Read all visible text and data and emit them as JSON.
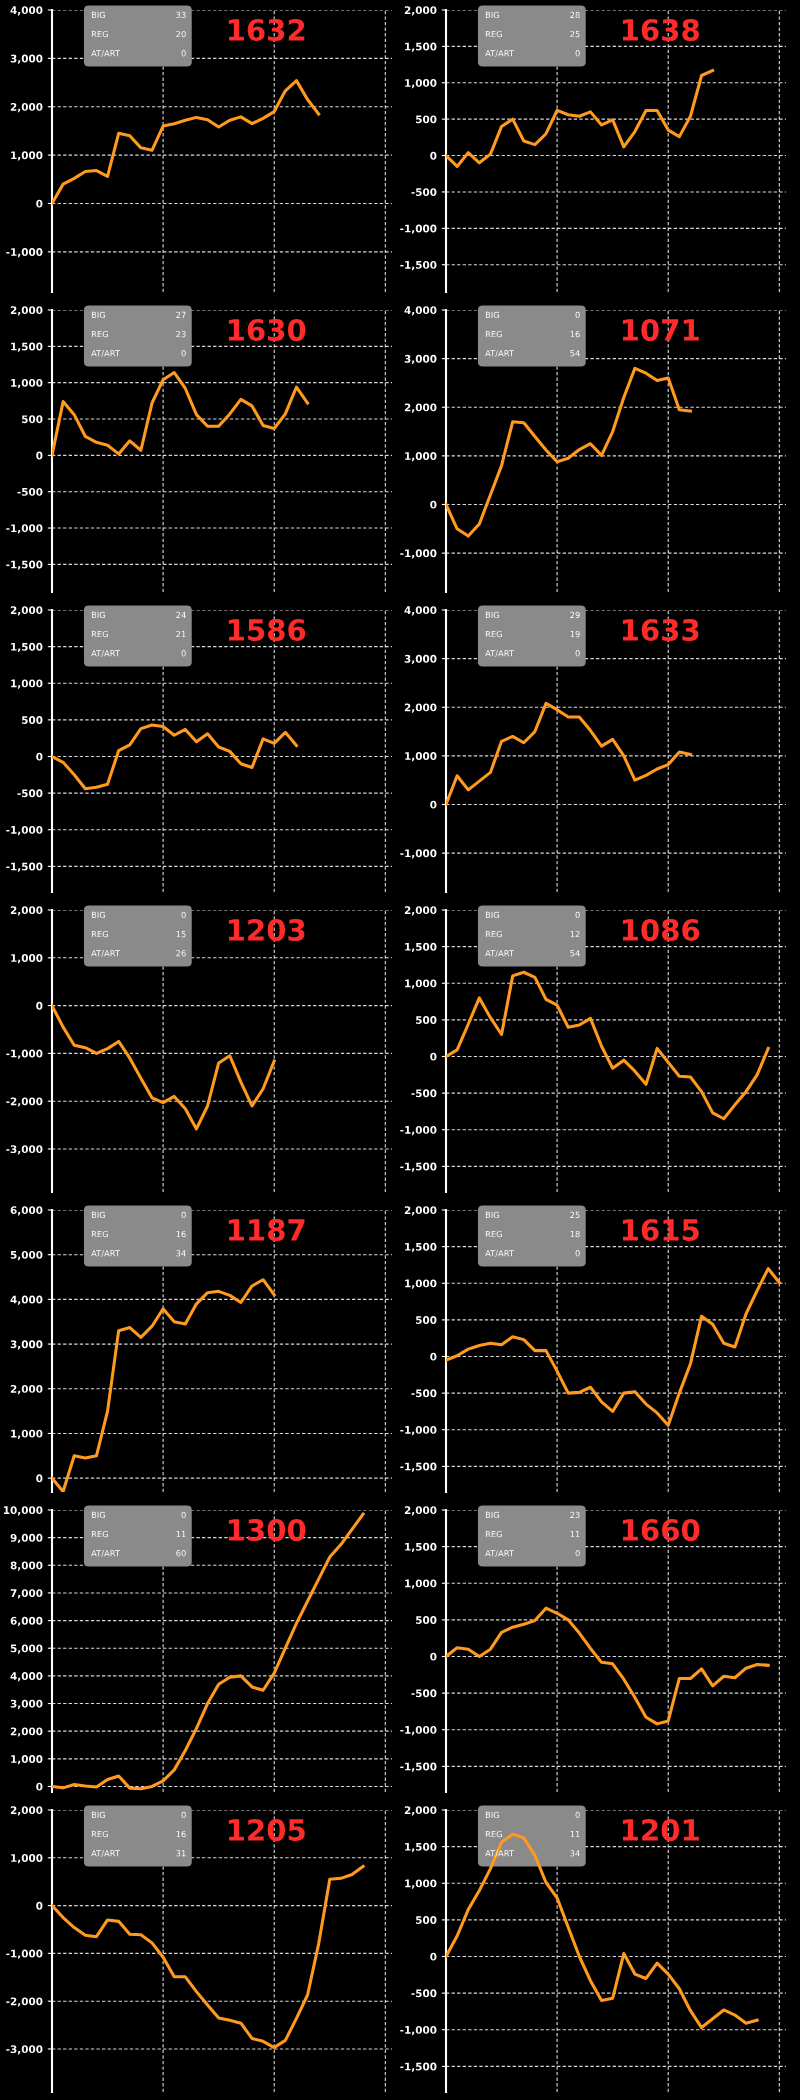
{
  "chart_data": [
    {
      "type": "line",
      "title": "1632",
      "annotations": [
        "BIG",
        "33",
        "REG",
        "20",
        "AT/ART",
        "0"
      ],
      "categories": [
        null,
        null,
        null,
        null,
        null,
        null,
        null,
        null,
        null,
        null,
        null,
        null,
        null,
        null,
        null,
        null,
        null,
        null,
        null,
        null,
        null,
        null,
        null,
        null,
        null,
        null,
        null,
        null,
        null,
        null,
        null
      ],
      "series": [
        {
          "color": "#ff9a1f",
          "values": [
            0,
            400,
            520,
            660,
            680,
            560,
            1450,
            1400,
            1150,
            1100,
            1600,
            1650,
            1720,
            1780,
            1730,
            1580,
            1720,
            1790,
            1650,
            1760,
            1900,
            2330,
            2540,
            2150,
            1850,
            null,
            null,
            null,
            null,
            null,
            null
          ]
        }
      ],
      "ylim": [
        -1830,
        4000
      ],
      "yticks": [
        {
          "value": -1000,
          "label": "-1,000"
        },
        0,
        {
          "value": 1000,
          "label": "1,000"
        },
        {
          "value": 2000,
          "label": "2,000"
        },
        {
          "value": 3000,
          "label": "3,000"
        },
        {
          "value": 4000,
          "label": "4,000"
        }
      ],
      "grid": true,
      "tick_labels": "y"
    },
    {
      "type": "line",
      "title": "1638",
      "annotations": [
        "BIG",
        "28",
        "REG",
        "25",
        "AT/ART",
        "0"
      ],
      "categories": [
        null,
        null,
        null,
        null,
        null,
        null,
        null,
        null,
        null,
        null,
        null,
        null,
        null,
        null,
        null,
        null,
        null,
        null,
        null,
        null,
        null,
        null,
        null,
        null,
        null,
        null,
        null,
        null,
        null,
        null,
        null
      ],
      "series": [
        {
          "color": "#ff9a1f",
          "values": [
            0,
            -150,
            40,
            -100,
            20,
            400,
            500,
            200,
            150,
            300,
            620,
            560,
            540,
            600,
            420,
            490,
            120,
            330,
            620,
            620,
            350,
            260,
            540,
            1100,
            1170,
            null,
            null,
            null,
            null,
            null,
            null
          ]
        }
      ],
      "ylim": [
        -1875,
        2000
      ],
      "yticks": [
        {
          "value": -1500,
          "label": "-1,500"
        },
        {
          "value": -1000,
          "label": "-1,000"
        },
        -500,
        0,
        500,
        {
          "value": 1000,
          "label": "1,000"
        },
        {
          "value": 1500,
          "label": "1,500"
        },
        {
          "value": 2000,
          "label": "2,000"
        }
      ],
      "grid": true,
      "tick_labels": "y"
    },
    {
      "type": "line",
      "title": "1630",
      "annotations": [
        "BIG",
        "27",
        "REG",
        "23",
        "AT/ART",
        "0"
      ],
      "categories": [
        null,
        null,
        null,
        null,
        null,
        null,
        null,
        null,
        null,
        null,
        null,
        null,
        null,
        null,
        null,
        null,
        null,
        null,
        null,
        null,
        null,
        null,
        null,
        null,
        null,
        null,
        null,
        null,
        null,
        null,
        null
      ],
      "series": [
        {
          "color": "#ff9a1f",
          "values": [
            0,
            740,
            560,
            260,
            180,
            140,
            20,
            200,
            70,
            720,
            1040,
            1140,
            920,
            560,
            400,
            400,
            570,
            770,
            680,
            410,
            370,
            570,
            940,
            720,
            null,
            null,
            null,
            null,
            null,
            null,
            null
          ]
        }
      ],
      "ylim": [
        -1880,
        2000
      ],
      "yticks": [
        {
          "value": -1500,
          "label": "-1,500"
        },
        {
          "value": -1000,
          "label": "-1,000"
        },
        -500,
        0,
        500,
        {
          "value": 1000,
          "label": "1,000"
        },
        {
          "value": 1500,
          "label": "1,500"
        },
        {
          "value": 2000,
          "label": "2,000"
        }
      ],
      "grid": true,
      "tick_labels": "y"
    },
    {
      "type": "line",
      "title": "1071",
      "annotations": [
        "BIG",
        "0",
        "REG",
        "16",
        "AT/ART",
        "54"
      ],
      "categories": [
        null,
        null,
        null,
        null,
        null,
        null,
        null,
        null,
        null,
        null,
        null,
        null,
        null,
        null,
        null,
        null,
        null,
        null,
        null,
        null,
        null,
        null,
        null,
        null,
        null,
        null,
        null,
        null,
        null,
        null,
        null
      ],
      "series": [
        {
          "color": "#ff9a1f",
          "values": [
            0,
            -500,
            -650,
            -400,
            200,
            800,
            1700,
            1680,
            1400,
            1120,
            880,
            950,
            1130,
            1250,
            1010,
            1500,
            2200,
            2800,
            2700,
            2550,
            2600,
            1950,
            1920,
            null,
            null,
            null,
            null,
            null,
            null,
            null,
            null
          ]
        }
      ],
      "ylim": [
        -1800,
        4000
      ],
      "yticks": [
        {
          "value": -1000,
          "label": "-1,000"
        },
        0,
        {
          "value": 1000,
          "label": "1,000"
        },
        {
          "value": 2000,
          "label": "2,000"
        },
        {
          "value": 3000,
          "label": "3,000"
        },
        {
          "value": 4000,
          "label": "4,000"
        }
      ],
      "grid": true,
      "tick_labels": "y"
    },
    {
      "type": "line",
      "title": "1586",
      "annotations": [
        "BIG",
        "24",
        "REG",
        "21",
        "AT/ART",
        "0"
      ],
      "categories": [
        null,
        null,
        null,
        null,
        null,
        null,
        null,
        null,
        null,
        null,
        null,
        null,
        null,
        null,
        null,
        null,
        null,
        null,
        null,
        null,
        null,
        null,
        null,
        null,
        null,
        null,
        null,
        null,
        null,
        null,
        null
      ],
      "series": [
        {
          "color": "#ff9a1f",
          "values": [
            0,
            -80,
            -250,
            -440,
            -420,
            -380,
            80,
            160,
            380,
            430,
            410,
            290,
            370,
            200,
            310,
            130,
            70,
            -100,
            -150,
            240,
            180,
            330,
            150,
            null,
            null,
            null,
            null,
            null,
            null,
            null,
            null
          ]
        }
      ],
      "ylim": [
        -1850,
        2000
      ],
      "yticks": [
        {
          "value": -1500,
          "label": "-1,500"
        },
        {
          "value": -1000,
          "label": "-1,000"
        },
        -500,
        0,
        500,
        {
          "value": 1000,
          "label": "1,000"
        },
        {
          "value": 1500,
          "label": "1,500"
        },
        {
          "value": 2000,
          "label": "2,000"
        }
      ],
      "grid": true,
      "tick_labels": "y"
    },
    {
      "type": "line",
      "title": "1633",
      "annotations": [
        "BIG",
        "29",
        "REG",
        "19",
        "AT/ART",
        "0"
      ],
      "categories": [
        null,
        null,
        null,
        null,
        null,
        null,
        null,
        null,
        null,
        null,
        null,
        null,
        null,
        null,
        null,
        null,
        null,
        null,
        null,
        null,
        null,
        null,
        null,
        null,
        null,
        null,
        null,
        null,
        null,
        null,
        null
      ],
      "series": [
        {
          "color": "#ff9a1f",
          "values": [
            0,
            590,
            300,
            480,
            660,
            1300,
            1400,
            1270,
            1500,
            2080,
            1950,
            1800,
            1800,
            1520,
            1200,
            1340,
            1000,
            500,
            600,
            730,
            820,
            1080,
            1030,
            null,
            null,
            null,
            null,
            null,
            null,
            null,
            null
          ]
        }
      ],
      "ylim": [
        -1800,
        4000
      ],
      "yticks": [
        {
          "value": -1000,
          "label": "-1,000"
        },
        0,
        {
          "value": 1000,
          "label": "1,000"
        },
        {
          "value": 2000,
          "label": "2,000"
        },
        {
          "value": 3000,
          "label": "3,000"
        },
        {
          "value": 4000,
          "label": "4,000"
        }
      ],
      "grid": true,
      "tick_labels": "y"
    },
    {
      "type": "line",
      "title": "1203",
      "annotations": [
        "BIG",
        "0",
        "REG",
        "15",
        "AT/ART",
        "26"
      ],
      "categories": [
        null,
        null,
        null,
        null,
        null,
        null,
        null,
        null,
        null,
        null,
        null,
        null,
        null,
        null,
        null,
        null,
        null,
        null,
        null,
        null,
        null,
        null,
        null,
        null,
        null,
        null,
        null,
        null,
        null,
        null,
        null
      ],
      "series": [
        {
          "color": "#ff9a1f",
          "values": [
            0,
            -450,
            -830,
            -880,
            -1000,
            -900,
            -750,
            -1100,
            -1520,
            -1930,
            -2030,
            -1900,
            -2160,
            -2580,
            -2100,
            -1200,
            -1050,
            -1600,
            -2100,
            -1740,
            -1160,
            null,
            null,
            null,
            null,
            null,
            null,
            null,
            null,
            null,
            null
          ]
        }
      ],
      "ylim": [
        -3900,
        2000
      ],
      "yticks": [
        {
          "value": -3000,
          "label": "-3,000"
        },
        {
          "value": -2000,
          "label": "-2,000"
        },
        {
          "value": -1000,
          "label": "-1,000"
        },
        0,
        {
          "value": 1000,
          "label": "1,000"
        },
        {
          "value": 2000,
          "label": "2,000"
        }
      ],
      "grid": true,
      "tick_labels": "y"
    },
    {
      "type": "line",
      "title": "1086",
      "annotations": [
        "BIG",
        "0",
        "REG",
        "12",
        "AT/ART",
        "54"
      ],
      "categories": [
        null,
        null,
        null,
        null,
        null,
        null,
        null,
        null,
        null,
        null,
        null,
        null,
        null,
        null,
        null,
        null,
        null,
        null,
        null,
        null,
        null,
        null,
        null,
        null,
        null,
        null,
        null,
        null,
        null,
        null,
        null
      ],
      "series": [
        {
          "color": "#ff9a1f",
          "values": [
            0,
            90,
            440,
            800,
            530,
            300,
            1100,
            1150,
            1080,
            780,
            700,
            400,
            430,
            520,
            140,
            -160,
            -50,
            -200,
            -380,
            110,
            -80,
            -270,
            -280,
            -480,
            -770,
            -850,
            -660,
            -480,
            -250,
            110,
            null
          ]
        }
      ],
      "ylim": [
        -1850,
        2000
      ],
      "yticks": [
        {
          "value": -1500,
          "label": "-1,500"
        },
        {
          "value": -1000,
          "label": "-1,000"
        },
        -500,
        0,
        500,
        {
          "value": 1000,
          "label": "1,000"
        },
        {
          "value": 1500,
          "label": "1,500"
        },
        {
          "value": 2000,
          "label": "2,000"
        }
      ],
      "grid": true,
      "tick_labels": "y"
    },
    {
      "type": "line",
      "title": "1187",
      "annotations": [
        "BIG",
        "0",
        "REG",
        "16",
        "AT/ART",
        "34"
      ],
      "categories": [
        null,
        null,
        null,
        null,
        null,
        null,
        null,
        null,
        null,
        null,
        null,
        null,
        null,
        null,
        null,
        null,
        null,
        null,
        null,
        null,
        null,
        null,
        null,
        null,
        null,
        null,
        null,
        null,
        null,
        null,
        null
      ],
      "series": [
        {
          "color": "#ff9a1f",
          "values": [
            0,
            -300,
            500,
            450,
            500,
            1500,
            3300,
            3370,
            3150,
            3400,
            3790,
            3500,
            3450,
            3900,
            4150,
            4180,
            4090,
            3930,
            4300,
            4440,
            4100,
            null,
            null,
            null,
            null,
            null,
            null,
            null,
            null,
            null,
            null
          ]
        }
      ],
      "ylim": [
        -310,
        6000
      ],
      "yticks": [
        0,
        {
          "value": 1000,
          "label": "1,000"
        },
        {
          "value": 2000,
          "label": "2,000"
        },
        {
          "value": 3000,
          "label": "3,000"
        },
        {
          "value": 4000,
          "label": "4,000"
        },
        {
          "value": 5000,
          "label": "5,000"
        },
        {
          "value": 6000,
          "label": "6,000"
        }
      ],
      "grid": true,
      "tick_labels": "y"
    },
    {
      "type": "line",
      "title": "1615",
      "annotations": [
        "BIG",
        "25",
        "REG",
        "18",
        "AT/ART",
        "0"
      ],
      "categories": [
        null,
        null,
        null,
        null,
        null,
        null,
        null,
        null,
        null,
        null,
        null,
        null,
        null,
        null,
        null,
        null,
        null,
        null,
        null,
        null,
        null,
        null,
        null,
        null,
        null,
        null,
        null,
        null,
        null,
        null,
        null
      ],
      "series": [
        {
          "color": "#ff9a1f",
          "values": [
            -50,
            10,
            100,
            150,
            180,
            160,
            270,
            230,
            80,
            80,
            -200,
            -500,
            -490,
            -420,
            -620,
            -750,
            -500,
            -480,
            -650,
            -770,
            -940,
            -500,
            -100,
            550,
            440,
            180,
            130,
            580,
            900,
            1200,
            1010
          ]
        }
      ],
      "ylim": [
        -1850,
        2000
      ],
      "yticks": [
        {
          "value": -1500,
          "label": "-1,500"
        },
        {
          "value": -1000,
          "label": "-1,000"
        },
        -500,
        0,
        500,
        {
          "value": 1000,
          "label": "1,000"
        },
        {
          "value": 1500,
          "label": "1,500"
        },
        {
          "value": 2000,
          "label": "2,000"
        }
      ],
      "grid": true,
      "tick_labels": "y"
    },
    {
      "type": "line",
      "title": "1300",
      "annotations": [
        "BIG",
        "0",
        "REG",
        "11",
        "AT/ART",
        "60"
      ],
      "categories": [
        null,
        null,
        null,
        null,
        null,
        null,
        null,
        null,
        null,
        null,
        null,
        null,
        null,
        null,
        null,
        null,
        null,
        null,
        null,
        null,
        null,
        null,
        null,
        null,
        null,
        null,
        null,
        null,
        null,
        null,
        null
      ],
      "series": [
        {
          "color": "#ff9a1f",
          "values": [
            0,
            -50,
            70,
            20,
            -20,
            250,
            380,
            -60,
            -80,
            0,
            200,
            600,
            1300,
            2100,
            3000,
            3700,
            3950,
            4000,
            3600,
            3480,
            4100,
            5000,
            5900,
            6700,
            7500,
            8300,
            8750,
            9300,
            9850,
            null,
            null
          ]
        }
      ],
      "ylim": [
        -200,
        10000
      ],
      "yticks": [
        0,
        {
          "value": 1000,
          "label": "1,000"
        },
        {
          "value": 2000,
          "label": "2,000"
        },
        {
          "value": 3000,
          "label": "3,000"
        },
        {
          "value": 4000,
          "label": "4,000"
        },
        {
          "value": 5000,
          "label": "5,000"
        },
        {
          "value": 6000,
          "label": "6,000"
        },
        {
          "value": 7000,
          "label": "7,000"
        },
        {
          "value": 8000,
          "label": "8,000"
        },
        {
          "value": 9000,
          "label": "9,000"
        },
        {
          "value": 10000,
          "label": "10,000"
        }
      ],
      "grid": true,
      "tick_labels": "y"
    },
    {
      "type": "line",
      "title": "1660",
      "annotations": [
        "BIG",
        "23",
        "REG",
        "11",
        "AT/ART",
        "0"
      ],
      "categories": [
        null,
        null,
        null,
        null,
        null,
        null,
        null,
        null,
        null,
        null,
        null,
        null,
        null,
        null,
        null,
        null,
        null,
        null,
        null,
        null,
        null,
        null,
        null,
        null,
        null,
        null,
        null,
        null,
        null,
        null,
        null
      ],
      "series": [
        {
          "color": "#ff9a1f",
          "values": [
            0,
            120,
            100,
            0,
            100,
            330,
            400,
            440,
            490,
            660,
            590,
            500,
            320,
            110,
            -80,
            -100,
            -310,
            -560,
            -830,
            -920,
            -880,
            -300,
            -300,
            -170,
            -400,
            -270,
            -290,
            -160,
            -110,
            -120,
            null
          ]
        }
      ],
      "ylim": [
        -1850,
        2000
      ],
      "yticks": [
        {
          "value": -1500,
          "label": "-1,500"
        },
        {
          "value": -1000,
          "label": "-1,000"
        },
        -500,
        0,
        500,
        {
          "value": 1000,
          "label": "1,000"
        },
        {
          "value": 1500,
          "label": "1,500"
        },
        {
          "value": 2000,
          "label": "2,000"
        }
      ],
      "grid": true,
      "tick_labels": "y"
    },
    {
      "type": "line",
      "title": "1205",
      "annotations": [
        "BIG",
        "0",
        "REG",
        "16",
        "AT/ART",
        "31"
      ],
      "categories": [
        null,
        null,
        null,
        null,
        null,
        null,
        null,
        null,
        null,
        null,
        null,
        null,
        null,
        null,
        null,
        null,
        null,
        null,
        null,
        null,
        null,
        null,
        null,
        null,
        null,
        null,
        null,
        null,
        null,
        null,
        null
      ],
      "series": [
        {
          "color": "#ff9a1f",
          "values": [
            0,
            -250,
            -460,
            -620,
            -650,
            -300,
            -330,
            -600,
            -610,
            -780,
            -1080,
            -1490,
            -1490,
            -1800,
            -2080,
            -2350,
            -2400,
            -2460,
            -2780,
            -2840,
            -2970,
            -2820,
            -2360,
            -1870,
            -800,
            550,
            570,
            650,
            820,
            null,
            null
          ]
        }
      ],
      "ylim": [
        -3900,
        2000
      ],
      "yticks": [
        {
          "value": -3000,
          "label": "-3,000"
        },
        {
          "value": -2000,
          "label": "-2,000"
        },
        {
          "value": -1000,
          "label": "-1,000"
        },
        0,
        {
          "value": 1000,
          "label": "1,000"
        },
        {
          "value": 2000,
          "label": "2,000"
        }
      ],
      "grid": true,
      "tick_labels": "y"
    },
    {
      "type": "line",
      "title": "1201",
      "annotations": [
        "BIG",
        "0",
        "REG",
        "11",
        "AT/ART",
        "34"
      ],
      "categories": [
        null,
        null,
        null,
        null,
        null,
        null,
        null,
        null,
        null,
        null,
        null,
        null,
        null,
        null,
        null,
        null,
        null,
        null,
        null,
        null,
        null,
        null,
        null,
        null,
        null,
        null,
        null,
        null,
        null,
        null,
        null
      ],
      "series": [
        {
          "color": "#ff9a1f",
          "values": [
            0,
            280,
            640,
            900,
            1200,
            1560,
            1670,
            1620,
            1380,
            1010,
            800,
            400,
            0,
            -330,
            -600,
            -570,
            40,
            -240,
            -300,
            -90,
            -240,
            -440,
            -740,
            -970,
            -850,
            -730,
            -800,
            -910,
            -870,
            null,
            null
          ]
        }
      ],
      "ylim": [
        -1850,
        2000
      ],
      "yticks": [
        {
          "value": -1500,
          "label": "-1,500"
        },
        {
          "value": -1000,
          "label": "-1,000"
        },
        -500,
        0,
        500,
        {
          "value": 1000,
          "label": "1,000"
        },
        {
          "value": 1500,
          "label": "1,500"
        },
        {
          "value": 2000,
          "label": "2,000"
        }
      ],
      "grid": true,
      "tick_labels": "y"
    }
  ]
}
